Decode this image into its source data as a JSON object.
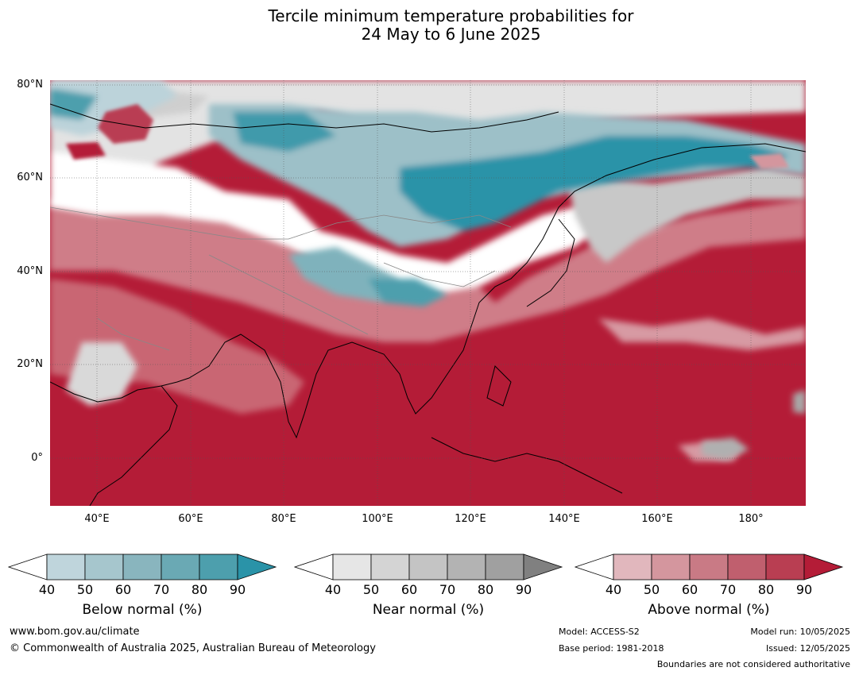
{
  "title_line1": "Tercile minimum temperature probabilities for",
  "title_line2": "24 May to 6 June 2025",
  "map": {
    "lat_ticks": [
      "80°N",
      "60°N",
      "40°N",
      "20°N",
      "0°"
    ],
    "lon_ticks": [
      "40°E",
      "60°E",
      "80°E",
      "100°E",
      "120°E",
      "140°E",
      "160°E",
      "180°"
    ],
    "colors": {
      "above_dominant": "#b41c37",
      "below_strong": "#2a93a8",
      "below_light": "#bcd3da",
      "near_normal_light": "#e4e4e4",
      "no_dominant": "#ffffff"
    }
  },
  "colorbars": [
    {
      "name": "below",
      "title": "Below normal (%)",
      "ticks": [
        "40",
        "50",
        "60",
        "70",
        "80",
        "90"
      ],
      "colors": [
        "#bfd5dc",
        "#a6c6cd",
        "#89b5be",
        "#6aa9b4",
        "#4d9fad",
        "#2a93a8"
      ]
    },
    {
      "name": "near",
      "title": "Near normal (%)",
      "ticks": [
        "40",
        "50",
        "60",
        "70",
        "80",
        "90"
      ],
      "colors": [
        "#e6e6e6",
        "#d4d4d4",
        "#c4c4c4",
        "#b3b3b3",
        "#a0a0a0",
        "#808080"
      ]
    },
    {
      "name": "above",
      "title": "Above normal (%)",
      "ticks": [
        "40",
        "50",
        "60",
        "70",
        "80",
        "90"
      ],
      "colors": [
        "#e1b7bd",
        "#d4969e",
        "#c97a85",
        "#c05f6e",
        "#b93e52",
        "#b41c37"
      ]
    }
  ],
  "footer": {
    "url": "www.bom.gov.au/climate",
    "copyright": "© Commonwealth of Australia 2025, Australian Bureau of Meteorology",
    "model": "Model: ACCESS-S2",
    "base_period": "Base period: 1981-2018",
    "model_run": "Model run: 10/05/2025",
    "issued": "Issued: 12/05/2025",
    "disclaimer": "Boundaries are not considered authoritative"
  }
}
